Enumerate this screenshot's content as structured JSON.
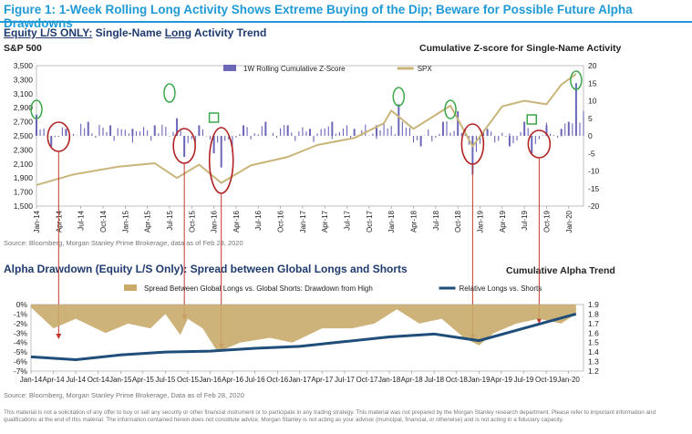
{
  "figure_title": "Figure 1: 1-Week Rolling Long Activity Shows Extreme Buying of the Dip; Beware for Possible Future Alpha Drawdowns",
  "top_panel": {
    "title_prefix": "Equity L/S ONLY:",
    "title_mid": " Single-Name ",
    "title_underlined": "Long",
    "title_suffix": " Activity Trend",
    "left_axis_caption": "S&P 500",
    "right_axis_caption": "Cumulative Z-score for Single-Name Activity",
    "source": "Source: Bloomberg, Morgan Stanley Prime Brokerage, data as of Feb 28, 2020"
  },
  "bottom_panel": {
    "title": "Alpha Drawdown (Equity L/S Only): Spread between Global Longs and Shorts",
    "right_axis_caption": "Cumulative Alpha Trend",
    "source": "Source: Bloomberg, Morgan Stanley Prime Brokerage, Data as of Feb 28, 2020"
  },
  "disclaimer": "This material is not a solicitation of any offer to buy or sell any security or other financial instrument or to participate in any trading strategy. This material was not prepared by the Morgan Stanley research department. Please refer to important information and qualifications at the end of this material. The information contained herein does not constitute advice. Morgan Stanley is not acting as your advisor (municipal, financial, or otherwise) and is not acting in a fiduciary capacity.",
  "colors": {
    "title_blue": "#1f9ad6",
    "zscore_bar": "#6a66b8",
    "spx_line": "#c9b57a",
    "drawdown_area": "#c8aa6a",
    "relative_line": "#1f4e7a",
    "circle_green": "#3aa84a",
    "circle_red": "#b22222",
    "arrow_red": "#c0392b"
  },
  "chart_data": [
    {
      "type": "bar",
      "series": [
        {
          "name": "1W Rolling Cumulative Z-Score",
          "axis": "right",
          "kind": "bar",
          "x": [
            "2014-01",
            "2014-03",
            "2014-05",
            "2014-08",
            "2014-11",
            "2015-02",
            "2015-05",
            "2015-08",
            "2015-09",
            "2015-11",
            "2016-01",
            "2016-02",
            "2016-05",
            "2016-08",
            "2016-11",
            "2017-02",
            "2017-05",
            "2017-08",
            "2017-11",
            "2018-02",
            "2018-05",
            "2018-08",
            "2018-10",
            "2018-12",
            "2019-02",
            "2019-05",
            "2019-07",
            "2019-08",
            "2019-10",
            "2019-12",
            "2020-01",
            "2020-02"
          ],
          "values": [
            6,
            -3,
            2,
            4,
            3,
            2,
            3,
            5,
            -6,
            3,
            -5,
            -9,
            3,
            4,
            3,
            2,
            4,
            2,
            3,
            9,
            -3,
            4,
            7,
            -11,
            2,
            -3,
            4,
            -5,
            3,
            2,
            4,
            15
          ]
        },
        {
          "name": "SPX",
          "axis": "left",
          "kind": "line",
          "x": [
            "2014-01",
            "2014-06",
            "2014-12",
            "2015-05",
            "2015-08",
            "2015-11",
            "2016-02",
            "2016-06",
            "2016-11",
            "2017-03",
            "2017-08",
            "2017-12",
            "2018-01",
            "2018-04",
            "2018-09",
            "2018-12",
            "2019-04",
            "2019-07",
            "2019-10",
            "2019-12",
            "2020-02"
          ],
          "values": [
            1800,
            1950,
            2060,
            2110,
            1900,
            2090,
            1830,
            2080,
            2200,
            2370,
            2470,
            2680,
            2860,
            2600,
            2930,
            2350,
            2920,
            3000,
            2950,
            3230,
            3380
          ]
        }
      ],
      "categories": [
        "Jan-14",
        "Apr-14",
        "Jul-14",
        "Oct-14",
        "Jan-15",
        "Apr-15",
        "Jul-15",
        "Oct-15",
        "Jan-16",
        "Apr-16",
        "Jul-16",
        "Oct-16",
        "Jan-17",
        "Apr-17",
        "Jul-17",
        "Oct-17",
        "Jan-18",
        "Apr-18",
        "Jul-18",
        "Oct-18",
        "Jan-19",
        "Apr-19",
        "Jul-19",
        "Oct-19",
        "Jan-20"
      ],
      "left_ticks": [
        "3,500",
        "3,300",
        "3,100",
        "2,900",
        "2,700",
        "2,500",
        "2,300",
        "2,100",
        "1,900",
        "1,700",
        "1,500"
      ],
      "right_ticks": [
        "20",
        "15",
        "10",
        "5",
        "0",
        "-5",
        "-10",
        "-15",
        "-20"
      ],
      "ylim_left": [
        1500,
        3500
      ],
      "ylim_right": [
        -20,
        20
      ],
      "legend": "top-center"
    },
    {
      "type": "area",
      "series": [
        {
          "name": "Spread Between Global Longs vs. Global Shorts: Drawdown from High",
          "axis": "left",
          "kind": "area",
          "x": [
            "2014-01",
            "2014-04",
            "2014-07",
            "2014-11",
            "2015-02",
            "2015-05",
            "2015-07",
            "2015-09",
            "2015-10",
            "2015-12",
            "2016-02",
            "2016-05",
            "2016-09",
            "2016-12",
            "2017-04",
            "2017-08",
            "2017-11",
            "2018-02",
            "2018-05",
            "2018-08",
            "2018-11",
            "2019-01",
            "2019-03",
            "2019-06",
            "2019-09",
            "2019-12",
            "2020-02"
          ],
          "values": [
            -0.3,
            -2.5,
            -1.5,
            -3.0,
            -2.0,
            -2.5,
            -1.0,
            -3.2,
            -1.5,
            -2.5,
            -5.0,
            -4.0,
            -3.5,
            -4.0,
            -2.5,
            -2.5,
            -2.0,
            -0.5,
            -2.0,
            -1.5,
            -3.5,
            -4.3,
            -3.0,
            -2.0,
            -1.5,
            -2.0,
            -1.0
          ]
        },
        {
          "name": "Relative Longs vs. Shorts",
          "axis": "right",
          "kind": "line",
          "x": [
            "2014-01",
            "2014-07",
            "2015-01",
            "2015-07",
            "2016-01",
            "2016-07",
            "2017-01",
            "2017-07",
            "2018-01",
            "2018-07",
            "2019-01",
            "2019-07",
            "2020-01",
            "2020-02"
          ],
          "values": [
            1.35,
            1.32,
            1.37,
            1.4,
            1.41,
            1.44,
            1.46,
            1.51,
            1.56,
            1.59,
            1.52,
            1.65,
            1.78,
            1.8
          ]
        }
      ],
      "categories": [
        "Jan-14",
        "Apr-14",
        "Jul-14",
        "Oct-14",
        "Jan-15",
        "Apr-15",
        "Jul-15",
        "Oct-15",
        "Jan-16",
        "Apr-16",
        "Jul-16",
        "Oct-16",
        "Jan-17",
        "Apr-17",
        "Jul-17",
        "Oct-17",
        "Jan-18",
        "Apr-18",
        "Jul-18",
        "Oct-18",
        "Jan-19",
        "Apr-19",
        "Jul-19",
        "Oct-19",
        "Jan-20"
      ],
      "left_ticks": [
        "0%",
        "-1%",
        "-2%",
        "-3%",
        "-4%",
        "-5%",
        "-6%",
        "-7%"
      ],
      "right_ticks": [
        "1.9",
        "1.8",
        "1.7",
        "1.6",
        "1.5",
        "1.4",
        "1.3",
        "1.2"
      ],
      "ylim_left": [
        -7,
        0
      ],
      "ylim_right": [
        1.2,
        1.9
      ],
      "legend": "top-center"
    }
  ]
}
